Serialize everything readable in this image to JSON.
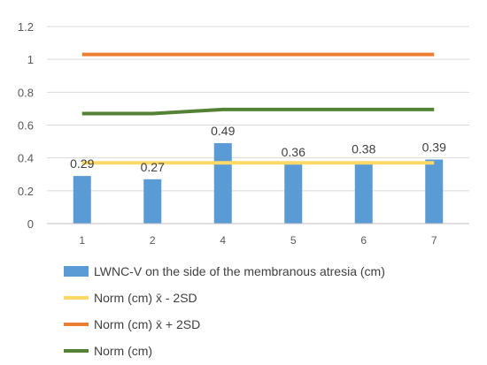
{
  "chart_data": {
    "type": "bar",
    "categories": [
      "1",
      "2",
      "4",
      "5",
      "6",
      "7"
    ],
    "ylim": [
      0,
      1.2
    ],
    "yticks": [
      "0",
      "0.2",
      "0.4",
      "0.6",
      "0.8",
      "1",
      "1.2"
    ],
    "gridlines": true,
    "legend_position": "bottom",
    "bar_series": {
      "name": "LWNC-V on the side of the membranous atresia (cm)",
      "values": [
        0.29,
        0.27,
        0.49,
        0.36,
        0.38,
        0.39
      ],
      "labels": [
        "0.29",
        "0.27",
        "0.49",
        "0.36",
        "0.38",
        "0.39"
      ],
      "color": "#5b9bd5"
    },
    "line_series": [
      {
        "name": "Norm (cm) x̄ - 2SD",
        "values": [
          0.37,
          0.37,
          0.37,
          0.37,
          0.37,
          0.37
        ],
        "color": "#ffd966"
      },
      {
        "name": "Norm (cm) x̄ + 2SD",
        "values": [
          1.03,
          1.03,
          1.03,
          1.03,
          1.03,
          1.03
        ],
        "color": "#ed7d31"
      },
      {
        "name": "Norm (cm)",
        "values": [
          0.67,
          0.67,
          0.695,
          0.695,
          0.695,
          0.695
        ],
        "color": "#548235"
      }
    ]
  }
}
